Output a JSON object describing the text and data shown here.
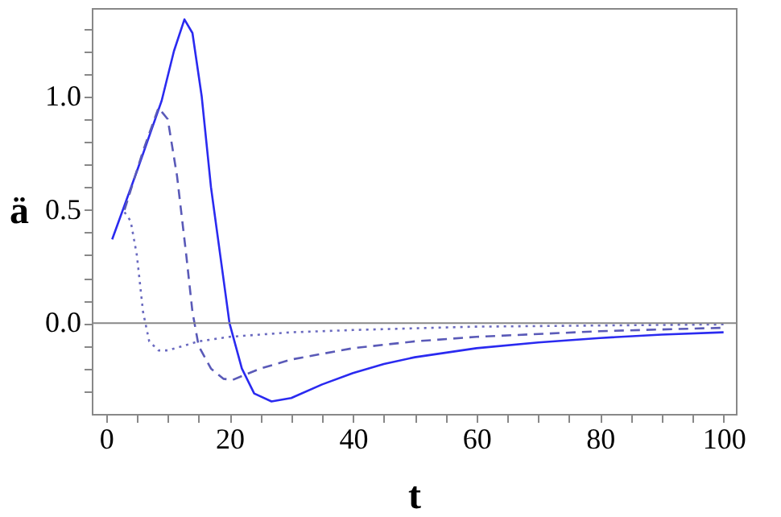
{
  "chart_data": {
    "type": "line",
    "xlabel": "t",
    "ylabel": "ä",
    "xlim": [
      -2.3,
      102
    ],
    "ylim": [
      -0.4,
      1.39
    ],
    "xticks": [
      0,
      {
        "value": 5,
        "label": null
      },
      {
        "value": 10,
        "label": null
      },
      {
        "value": 15,
        "label": null
      },
      20,
      {
        "value": 25,
        "label": null
      },
      {
        "value": 30,
        "label": null
      },
      {
        "value": 35,
        "label": null
      },
      40,
      {
        "value": 45,
        "label": null
      },
      {
        "value": 50,
        "label": null
      },
      {
        "value": 55,
        "label": null
      },
      60,
      {
        "value": 65,
        "label": null
      },
      {
        "value": 70,
        "label": null
      },
      {
        "value": 75,
        "label": null
      },
      80,
      {
        "value": 85,
        "label": null
      },
      {
        "value": 90,
        "label": null
      },
      {
        "value": 95,
        "label": null
      },
      100
    ],
    "yticks": [
      {
        "value": -0.3,
        "label": null
      },
      {
        "value": -0.2,
        "label": null
      },
      {
        "value": -0.1,
        "label": null
      },
      {
        "value": 0,
        "label": "0.0"
      },
      {
        "value": 0.1,
        "label": null
      },
      {
        "value": 0.2,
        "label": null
      },
      {
        "value": 0.3,
        "label": null
      },
      {
        "value": 0.4,
        "label": null
      },
      {
        "value": 0.5,
        "label": "0.5"
      },
      {
        "value": 0.6,
        "label": null
      },
      {
        "value": 0.7,
        "label": null
      },
      {
        "value": 0.8,
        "label": null
      },
      {
        "value": 0.9,
        "label": null
      },
      {
        "value": 1.0,
        "label": "1.0"
      },
      {
        "value": 1.1,
        "label": null
      },
      {
        "value": 1.2,
        "label": null
      },
      {
        "value": 1.3,
        "label": null
      }
    ],
    "grid": false,
    "ref_lines": [
      {
        "axis": "y",
        "value": 0,
        "color": "#888888",
        "line_style": "solid"
      }
    ],
    "series": [
      {
        "color": "#2a2af0",
        "line_style": "solid",
        "x": [
          1,
          5,
          9,
          11,
          12.7,
          14,
          15.5,
          17,
          18.5,
          20,
          22,
          24,
          26.8,
          30,
          35,
          40,
          45,
          50,
          60,
          70,
          80,
          90,
          100
        ],
        "values": [
          0.37,
          0.67,
          0.98,
          1.2,
          1.34,
          1.28,
          1.0,
          0.6,
          0.3,
          0.0,
          -0.2,
          -0.31,
          -0.345,
          -0.33,
          -0.27,
          -0.22,
          -0.18,
          -0.15,
          -0.11,
          -0.085,
          -0.065,
          -0.05,
          -0.04
        ]
      },
      {
        "color": "#5a5ab8",
        "line_style": "dashed",
        "x": [
          3,
          6,
          8.5,
          10,
          11.5,
          13,
          14,
          15,
          17,
          19,
          20.5,
          25,
          30,
          40,
          50,
          60,
          80,
          100
        ],
        "values": [
          0.5,
          0.76,
          0.95,
          0.9,
          0.65,
          0.3,
          0.05,
          -0.1,
          -0.2,
          -0.245,
          -0.25,
          -0.2,
          -0.16,
          -0.11,
          -0.08,
          -0.06,
          -0.035,
          -0.02
        ]
      },
      {
        "color": "#6a6ac0",
        "line_style": "dotted",
        "x": [
          3,
          4,
          5,
          6,
          7,
          8.5,
          10,
          15,
          20,
          30,
          40,
          60,
          100
        ],
        "values": [
          0.49,
          0.45,
          0.3,
          0.05,
          -0.08,
          -0.12,
          -0.12,
          -0.08,
          -0.06,
          -0.04,
          -0.03,
          -0.015,
          -0.005
        ]
      }
    ]
  }
}
